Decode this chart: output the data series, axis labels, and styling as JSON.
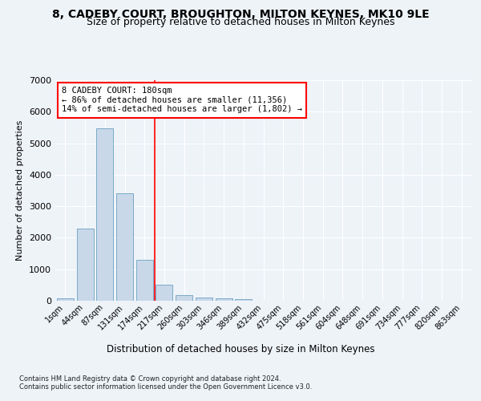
{
  "title_line1": "8, CADEBY COURT, BROUGHTON, MILTON KEYNES, MK10 9LE",
  "title_line2": "Size of property relative to detached houses in Milton Keynes",
  "xlabel": "Distribution of detached houses by size in Milton Keynes",
  "ylabel": "Number of detached properties",
  "footnote": "Contains HM Land Registry data © Crown copyright and database right 2024.\nContains public sector information licensed under the Open Government Licence v3.0.",
  "bar_labels": [
    "1sqm",
    "44sqm",
    "87sqm",
    "131sqm",
    "174sqm",
    "217sqm",
    "260sqm",
    "303sqm",
    "346sqm",
    "389sqm",
    "432sqm",
    "475sqm",
    "518sqm",
    "561sqm",
    "604sqm",
    "648sqm",
    "691sqm",
    "734sqm",
    "777sqm",
    "820sqm",
    "863sqm"
  ],
  "bar_values": [
    75,
    2280,
    5480,
    3400,
    1310,
    510,
    190,
    90,
    65,
    60,
    0,
    0,
    0,
    0,
    0,
    0,
    0,
    0,
    0,
    0,
    0
  ],
  "bar_color": "#c8d8e8",
  "bar_edgecolor": "#7aaac8",
  "vline_x": 4.5,
  "vline_color": "red",
  "annotation_text": "8 CADEBY COURT: 180sqm\n← 86% of detached houses are smaller (11,356)\n14% of semi-detached houses are larger (1,802) →",
  "annotation_box_color": "white",
  "annotation_box_edgecolor": "red",
  "ylim": [
    0,
    7000
  ],
  "yticks": [
    0,
    1000,
    2000,
    3000,
    4000,
    5000,
    6000,
    7000
  ],
  "bg_color": "#eef3f8",
  "plot_bg_color": "#eef3f8",
  "grid_color": "white",
  "title_fontsize": 10,
  "subtitle_fontsize": 9,
  "bar_width": 0.85
}
